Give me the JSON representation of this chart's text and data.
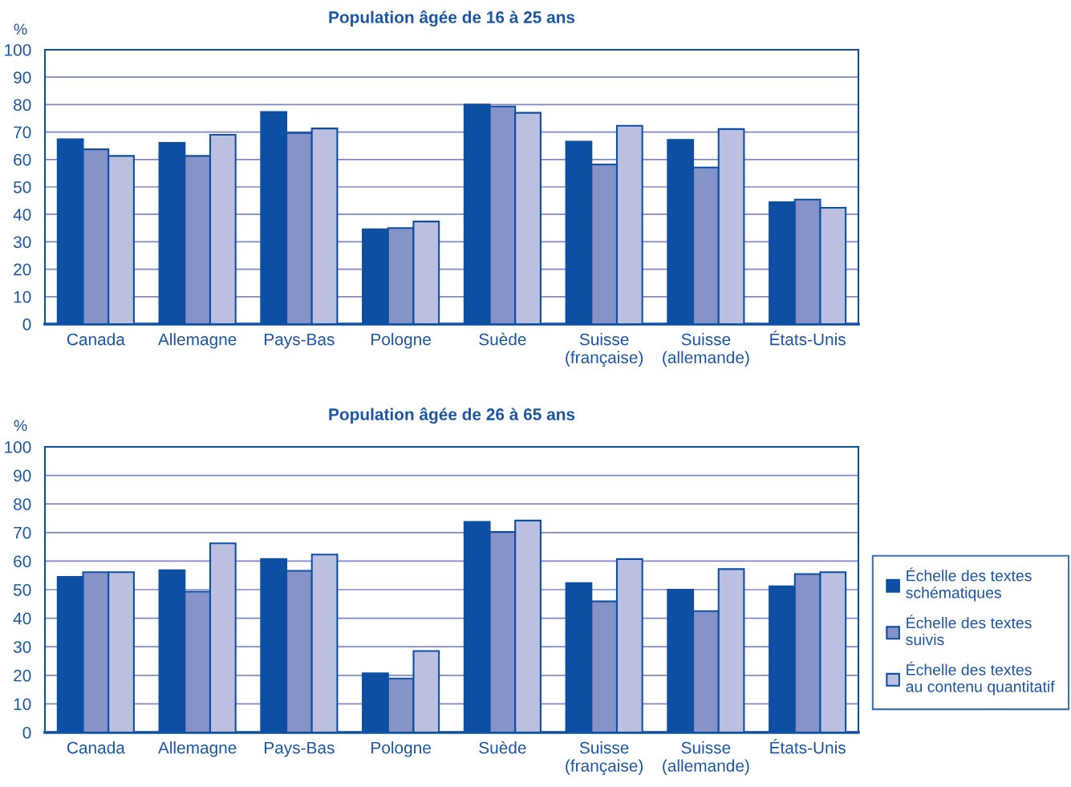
{
  "chart_data": [
    {
      "type": "bar",
      "title": "Population âgée de 16 à 25 ans",
      "ylabel": "%",
      "categories": [
        "Canada",
        "Allemagne",
        "Pays-Bas",
        "Pologne",
        "Suède",
        "Suisse (française)",
        "Suisse (allemande)",
        "États-Unis"
      ],
      "series": [
        {
          "color": "#0d4fa3",
          "values": [
            67.4,
            66.1,
            77.3,
            34.6,
            80.0,
            66.5,
            67.2,
            44.4
          ]
        },
        {
          "color": "#8593c8",
          "values": [
            63.7,
            61.3,
            69.7,
            35.0,
            79.3,
            58.2,
            57.1,
            45.4
          ]
        },
        {
          "color": "#bbc0e0",
          "values": [
            61.3,
            69.0,
            71.3,
            37.4,
            77.0,
            72.3,
            71.1,
            42.4
          ]
        }
      ],
      "ylim": [
        0,
        100
      ],
      "yticks": [
        0,
        10,
        20,
        30,
        40,
        50,
        60,
        70,
        80,
        90,
        100
      ],
      "grid": "y"
    },
    {
      "type": "bar",
      "title": "Population âgée de 26 à 65 ans",
      "ylabel": "%",
      "categories": [
        "Canada",
        "Allemagne",
        "Pays-Bas",
        "Pologne",
        "Suède",
        "Suisse (française)",
        "Suisse (allemande)",
        "États-Unis"
      ],
      "series": [
        {
          "name": "Échelle des textes schématiques",
          "color": "#0d4fa3",
          "values": [
            54.5,
            56.8,
            60.7,
            20.7,
            73.7,
            52.3,
            50.0,
            51.2
          ]
        },
        {
          "name": "Échelle des textes suivis",
          "color": "#8593c8",
          "values": [
            56.1,
            49.3,
            56.6,
            18.9,
            70.2,
            45.9,
            42.5,
            55.5
          ]
        },
        {
          "name": "Échelle des textes au contenu quantitatif",
          "color": "#bbc0e0",
          "values": [
            56.1,
            66.2,
            62.3,
            28.5,
            74.2,
            60.7,
            57.2,
            56.1
          ]
        }
      ],
      "ylim": [
        0,
        100
      ],
      "yticks": [
        0,
        10,
        20,
        30,
        40,
        50,
        60,
        70,
        80,
        90,
        100
      ],
      "grid": "y",
      "legend": "right"
    }
  ]
}
